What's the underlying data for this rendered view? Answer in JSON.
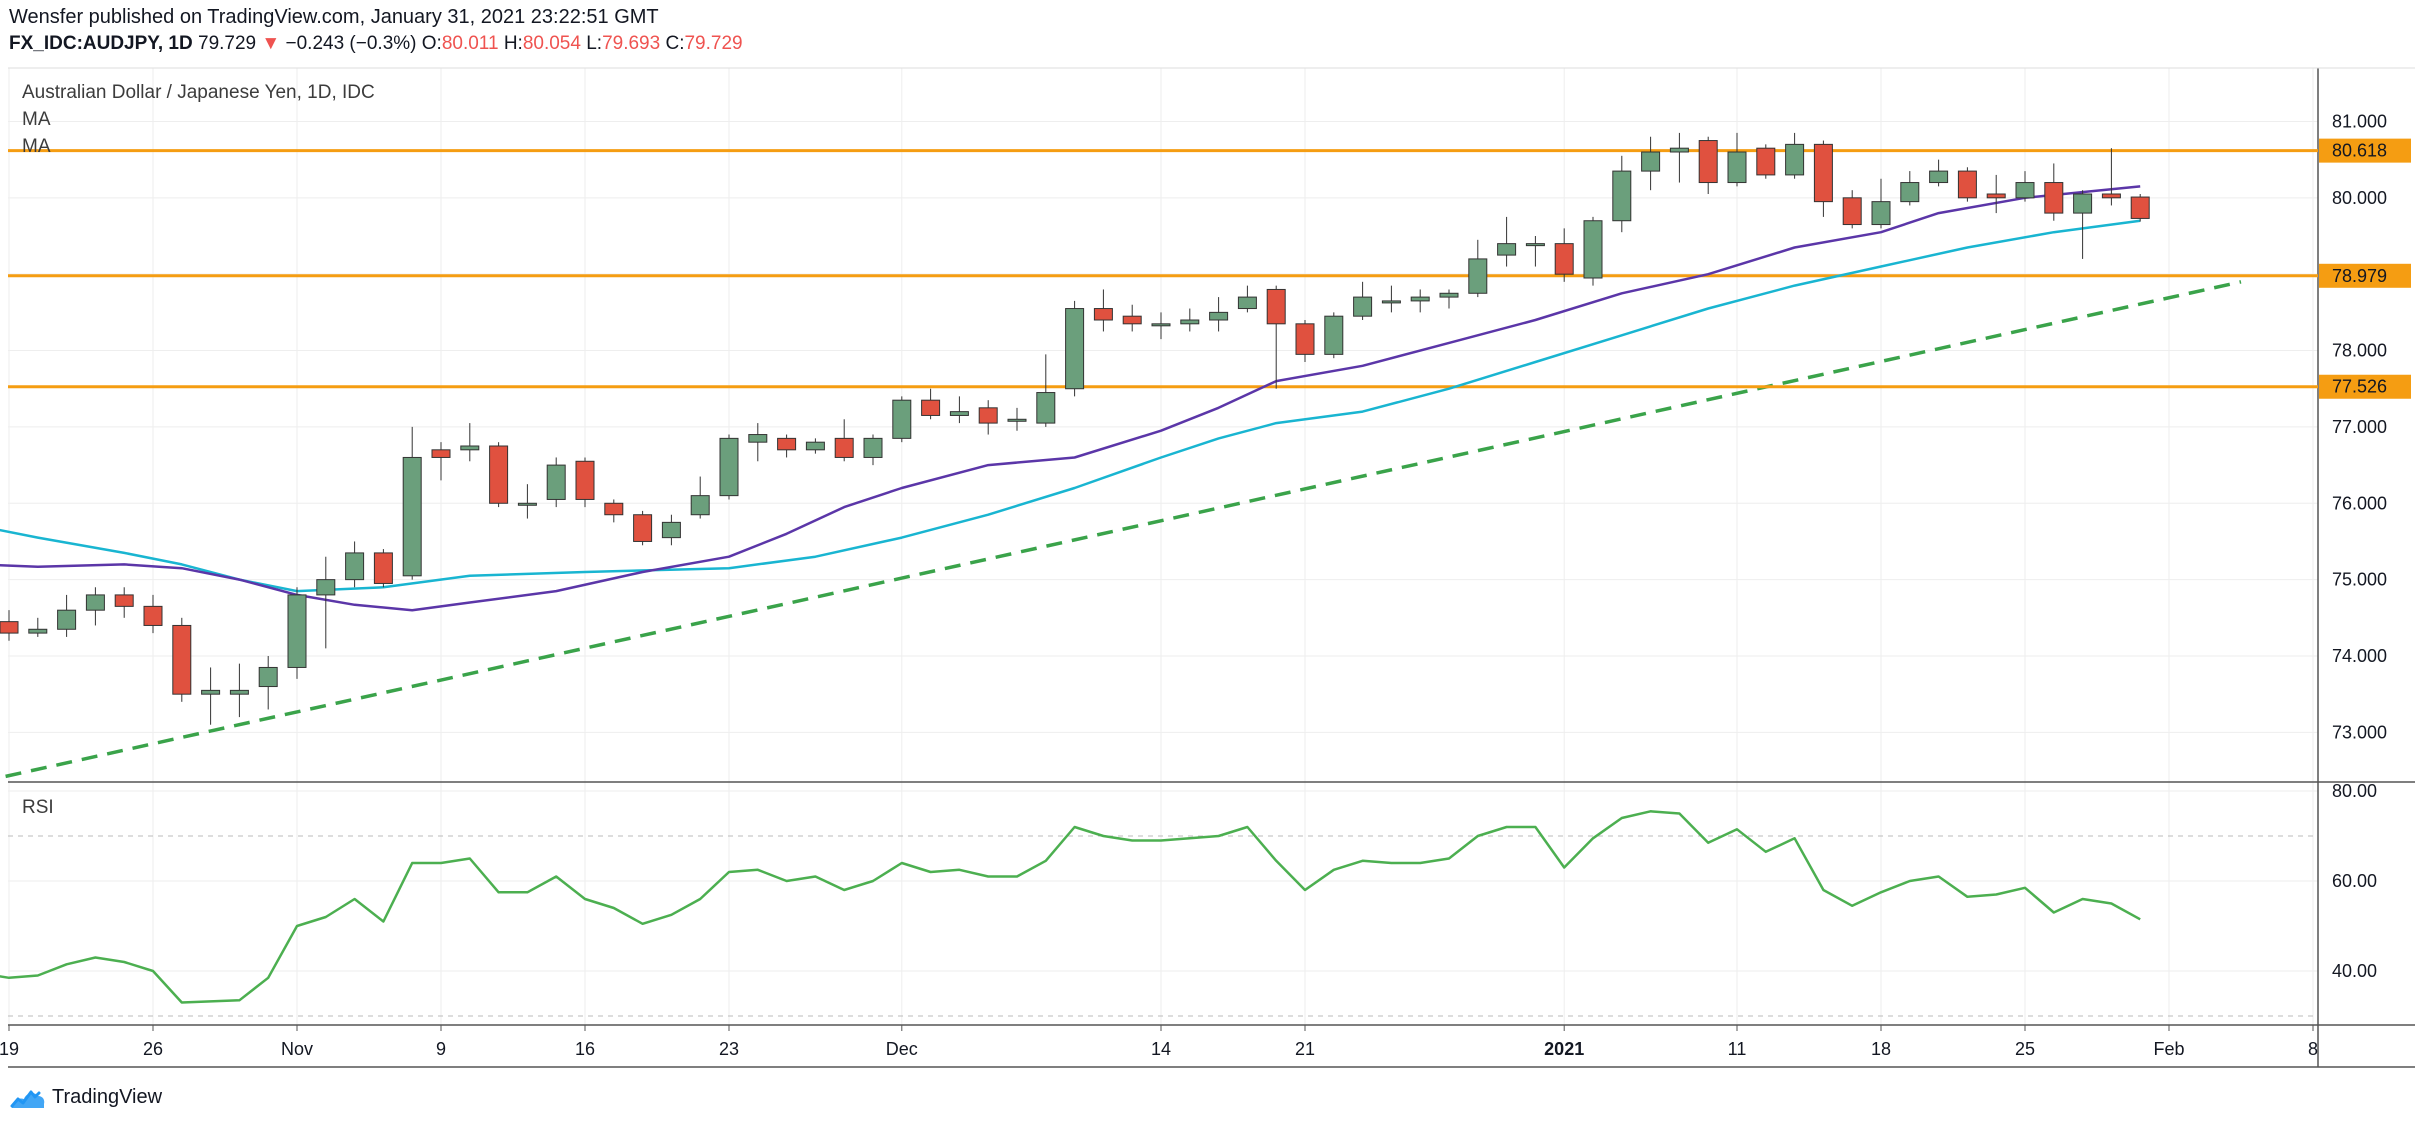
{
  "header": {
    "publisher_line": "Wensfer published on TradingView.com, January 31, 2021 23:22:51 GMT",
    "symbol": "FX_IDC:AUDJPY, 1D",
    "last": "79.729",
    "change_arrow": "▼",
    "change": "−0.243 (−0.3%)",
    "open_label": "O:",
    "open": "80.011",
    "high_label": "H:",
    "high": "80.054",
    "low_label": "L:",
    "low": "79.693",
    "close_label": "C:",
    "close": "79.729"
  },
  "legend": {
    "title": "Australian Dollar / Japanese Yen, 1D, IDC",
    "ma1": "MA",
    "ma2": "MA",
    "rsi": "RSI"
  },
  "brand": {
    "name": "TradingView"
  },
  "colors": {
    "up": "#6b9f7c",
    "down": "#e0513f",
    "ma_fast": "#5b36a8",
    "ma_slow": "#19b5d1",
    "trend": "#3aa34a",
    "hline": "#f59d12",
    "rsi": "#4caf50",
    "grid": "#eeeeee"
  },
  "chart_data": [
    {
      "type": "candlestick",
      "title": "Australian Dollar / Japanese Yen, 1D, IDC",
      "ylim": [
        72.35,
        81.7
      ],
      "yticks": [
        "73.000",
        "74.000",
        "75.000",
        "76.000",
        "77.000",
        "78.000",
        "80.000",
        "81.000"
      ],
      "x_tick_labels": [
        {
          "label": "19",
          "day": -10
        },
        {
          "label": "26",
          "day": -5
        },
        {
          "label": "Nov",
          "day": 0
        },
        {
          "label": "9",
          "day": 5
        },
        {
          "label": "16",
          "day": 10
        },
        {
          "label": "23",
          "day": 15
        },
        {
          "label": "Dec",
          "day": 21
        },
        {
          "label": "14",
          "day": 30
        },
        {
          "label": "21",
          "day": 35
        },
        {
          "label": "2021",
          "day": 44
        },
        {
          "label": "11",
          "day": 50
        },
        {
          "label": "18",
          "day": 55
        },
        {
          "label": "25",
          "day": 60
        },
        {
          "label": "Feb",
          "day": 65
        },
        {
          "label": "8",
          "day": 70
        }
      ],
      "candles": [
        {
          "day": -11,
          "o": 74.6,
          "h": 75.0,
          "l": 74.3,
          "c": 74.45
        },
        {
          "day": -10,
          "o": 74.45,
          "h": 74.6,
          "l": 74.2,
          "c": 74.3
        },
        {
          "day": -9,
          "o": 74.3,
          "h": 74.5,
          "l": 74.25,
          "c": 74.35
        },
        {
          "day": -8,
          "o": 74.35,
          "h": 74.8,
          "l": 74.25,
          "c": 74.6
        },
        {
          "day": -7,
          "o": 74.6,
          "h": 74.9,
          "l": 74.4,
          "c": 74.8
        },
        {
          "day": -6,
          "o": 74.8,
          "h": 74.9,
          "l": 74.5,
          "c": 74.65
        },
        {
          "day": -5,
          "o": 74.65,
          "h": 74.8,
          "l": 74.3,
          "c": 74.4
        },
        {
          "day": -4,
          "o": 74.4,
          "h": 74.5,
          "l": 73.4,
          "c": 73.5
        },
        {
          "day": -3,
          "o": 73.5,
          "h": 73.85,
          "l": 73.1,
          "c": 73.55
        },
        {
          "day": -2,
          "o": 73.5,
          "h": 73.9,
          "l": 73.2,
          "c": 73.55
        },
        {
          "day": -1,
          "o": 73.6,
          "h": 74.0,
          "l": 73.3,
          "c": 73.85
        },
        {
          "day": 0,
          "o": 73.85,
          "h": 74.9,
          "l": 73.7,
          "c": 74.8
        },
        {
          "day": 1,
          "o": 74.8,
          "h": 75.3,
          "l": 74.1,
          "c": 75.0
        },
        {
          "day": 2,
          "o": 75.0,
          "h": 75.5,
          "l": 74.9,
          "c": 75.35
        },
        {
          "day": 3,
          "o": 75.35,
          "h": 75.4,
          "l": 74.9,
          "c": 74.95
        },
        {
          "day": 4,
          "o": 75.05,
          "h": 77.0,
          "l": 75.0,
          "c": 76.6
        },
        {
          "day": 5,
          "o": 76.7,
          "h": 76.8,
          "l": 76.3,
          "c": 76.6
        },
        {
          "day": 6,
          "o": 76.7,
          "h": 77.05,
          "l": 76.55,
          "c": 76.75
        },
        {
          "day": 7,
          "o": 76.75,
          "h": 76.8,
          "l": 75.95,
          "c": 76.0
        },
        {
          "day": 8,
          "o": 76.0,
          "h": 76.25,
          "l": 75.8,
          "c": 76.0
        },
        {
          "day": 9,
          "o": 76.05,
          "h": 76.6,
          "l": 75.95,
          "c": 76.5
        },
        {
          "day": 10,
          "o": 76.55,
          "h": 76.6,
          "l": 75.95,
          "c": 76.05
        },
        {
          "day": 11,
          "o": 76.0,
          "h": 76.05,
          "l": 75.75,
          "c": 75.85
        },
        {
          "day": 12,
          "o": 75.85,
          "h": 75.9,
          "l": 75.45,
          "c": 75.5
        },
        {
          "day": 13,
          "o": 75.55,
          "h": 75.85,
          "l": 75.45,
          "c": 75.75
        },
        {
          "day": 14,
          "o": 75.85,
          "h": 76.35,
          "l": 75.8,
          "c": 76.1
        },
        {
          "day": 15,
          "o": 76.1,
          "h": 76.9,
          "l": 76.05,
          "c": 76.85
        },
        {
          "day": 16,
          "o": 76.8,
          "h": 77.05,
          "l": 76.55,
          "c": 76.9
        },
        {
          "day": 17,
          "o": 76.85,
          "h": 76.9,
          "l": 76.6,
          "c": 76.7
        },
        {
          "day": 18,
          "o": 76.7,
          "h": 76.85,
          "l": 76.65,
          "c": 76.8
        },
        {
          "day": 19,
          "o": 76.85,
          "h": 77.1,
          "l": 76.55,
          "c": 76.6
        },
        {
          "day": 20,
          "o": 76.6,
          "h": 76.9,
          "l": 76.5,
          "c": 76.85
        },
        {
          "day": 21,
          "o": 76.85,
          "h": 77.4,
          "l": 76.8,
          "c": 77.35
        },
        {
          "day": 22,
          "o": 77.35,
          "h": 77.5,
          "l": 77.1,
          "c": 77.15
        },
        {
          "day": 23,
          "o": 77.15,
          "h": 77.4,
          "l": 77.05,
          "c": 77.2
        },
        {
          "day": 24,
          "o": 77.25,
          "h": 77.35,
          "l": 76.9,
          "c": 77.05
        },
        {
          "day": 25,
          "o": 77.1,
          "h": 77.25,
          "l": 76.95,
          "c": 77.1
        },
        {
          "day": 26,
          "o": 77.05,
          "h": 77.95,
          "l": 77.0,
          "c": 77.45
        },
        {
          "day": 27,
          "o": 77.5,
          "h": 78.65,
          "l": 77.4,
          "c": 78.55
        },
        {
          "day": 28,
          "o": 78.55,
          "h": 78.8,
          "l": 78.25,
          "c": 78.4
        },
        {
          "day": 29,
          "o": 78.45,
          "h": 78.6,
          "l": 78.25,
          "c": 78.35
        },
        {
          "day": 30,
          "o": 78.35,
          "h": 78.5,
          "l": 78.15,
          "c": 78.35
        },
        {
          "day": 31,
          "o": 78.35,
          "h": 78.55,
          "l": 78.25,
          "c": 78.4
        },
        {
          "day": 32,
          "o": 78.4,
          "h": 78.7,
          "l": 78.25,
          "c": 78.5
        },
        {
          "day": 33,
          "o": 78.55,
          "h": 78.85,
          "l": 78.5,
          "c": 78.7
        },
        {
          "day": 34,
          "o": 78.8,
          "h": 78.85,
          "l": 77.5,
          "c": 78.35
        },
        {
          "day": 35,
          "o": 78.35,
          "h": 78.4,
          "l": 77.85,
          "c": 77.95
        },
        {
          "day": 36,
          "o": 77.95,
          "h": 78.5,
          "l": 77.9,
          "c": 78.45
        },
        {
          "day": 37,
          "o": 78.45,
          "h": 78.9,
          "l": 78.4,
          "c": 78.7
        },
        {
          "day": 38,
          "o": 78.65,
          "h": 78.85,
          "l": 78.5,
          "c": 78.65
        },
        {
          "day": 39,
          "o": 78.65,
          "h": 78.8,
          "l": 78.5,
          "c": 78.7
        },
        {
          "day": 40,
          "o": 78.7,
          "h": 78.8,
          "l": 78.55,
          "c": 78.75
        },
        {
          "day": 41,
          "o": 78.75,
          "h": 79.45,
          "l": 78.7,
          "c": 79.2
        },
        {
          "day": 42,
          "o": 79.25,
          "h": 79.75,
          "l": 79.1,
          "c": 79.4
        },
        {
          "day": 43,
          "o": 79.4,
          "h": 79.5,
          "l": 79.1,
          "c": 79.4
        },
        {
          "day": 44,
          "o": 79.4,
          "h": 79.6,
          "l": 78.9,
          "c": 79.0
        },
        {
          "day": 45,
          "o": 78.95,
          "h": 79.75,
          "l": 78.85,
          "c": 79.7
        },
        {
          "day": 46,
          "o": 79.7,
          "h": 80.55,
          "l": 79.55,
          "c": 80.35
        },
        {
          "day": 47,
          "o": 80.35,
          "h": 80.8,
          "l": 80.1,
          "c": 80.6
        },
        {
          "day": 48,
          "o": 80.6,
          "h": 80.85,
          "l": 80.2,
          "c": 80.65
        },
        {
          "day": 49,
          "o": 80.75,
          "h": 80.8,
          "l": 80.05,
          "c": 80.2
        },
        {
          "day": 50,
          "o": 80.2,
          "h": 80.85,
          "l": 80.15,
          "c": 80.6
        },
        {
          "day": 51,
          "o": 80.65,
          "h": 80.7,
          "l": 80.25,
          "c": 80.3
        },
        {
          "day": 52,
          "o": 80.3,
          "h": 80.85,
          "l": 80.25,
          "c": 80.7
        },
        {
          "day": 53,
          "o": 80.7,
          "h": 80.75,
          "l": 79.75,
          "c": 79.95
        },
        {
          "day": 54,
          "o": 80.0,
          "h": 80.1,
          "l": 79.6,
          "c": 79.65
        },
        {
          "day": 55,
          "o": 79.65,
          "h": 80.25,
          "l": 79.6,
          "c": 79.95
        },
        {
          "day": 56,
          "o": 79.95,
          "h": 80.35,
          "l": 79.9,
          "c": 80.2
        },
        {
          "day": 57,
          "o": 80.2,
          "h": 80.5,
          "l": 80.15,
          "c": 80.35
        },
        {
          "day": 58,
          "o": 80.35,
          "h": 80.4,
          "l": 79.95,
          "c": 80.0
        },
        {
          "day": 59,
          "o": 80.05,
          "h": 80.3,
          "l": 79.8,
          "c": 80.0
        },
        {
          "day": 60,
          "o": 80.0,
          "h": 80.35,
          "l": 79.95,
          "c": 80.2
        },
        {
          "day": 61,
          "o": 80.2,
          "h": 80.45,
          "l": 79.7,
          "c": 79.8
        },
        {
          "day": 62,
          "o": 79.8,
          "h": 80.1,
          "l": 79.2,
          "c": 80.05
        },
        {
          "day": 63,
          "o": 80.05,
          "h": 80.65,
          "l": 79.9,
          "c": 80.0
        },
        {
          "day": 64,
          "o": 80.01,
          "h": 80.05,
          "l": 79.69,
          "c": 79.73
        }
      ],
      "ma_fast": {
        "name": "MA",
        "points": [
          [
            -11,
            75.2
          ],
          [
            -9,
            75.17
          ],
          [
            -6,
            75.2
          ],
          [
            -4,
            75.15
          ],
          [
            -2,
            75.0
          ],
          [
            0,
            74.8
          ],
          [
            2,
            74.67
          ],
          [
            4,
            74.6
          ],
          [
            6,
            74.7
          ],
          [
            9,
            74.85
          ],
          [
            12,
            75.1
          ],
          [
            15,
            75.3
          ],
          [
            17,
            75.6
          ],
          [
            19,
            75.95
          ],
          [
            21,
            76.2
          ],
          [
            24,
            76.5
          ],
          [
            27,
            76.6
          ],
          [
            30,
            76.95
          ],
          [
            32,
            77.25
          ],
          [
            34,
            77.6
          ],
          [
            37,
            77.8
          ],
          [
            40,
            78.1
          ],
          [
            43,
            78.4
          ],
          [
            46,
            78.75
          ],
          [
            49,
            79.0
          ],
          [
            52,
            79.35
          ],
          [
            55,
            79.55
          ],
          [
            57,
            79.8
          ],
          [
            60,
            80.0
          ],
          [
            64,
            80.15
          ]
        ]
      },
      "ma_slow": {
        "name": "MA",
        "points": [
          [
            -11,
            75.7
          ],
          [
            -9,
            75.55
          ],
          [
            -6,
            75.35
          ],
          [
            -4,
            75.2
          ],
          [
            -2,
            75.0
          ],
          [
            0,
            74.85
          ],
          [
            3,
            74.9
          ],
          [
            6,
            75.05
          ],
          [
            10,
            75.1
          ],
          [
            15,
            75.15
          ],
          [
            18,
            75.3
          ],
          [
            21,
            75.55
          ],
          [
            24,
            75.85
          ],
          [
            27,
            76.2
          ],
          [
            30,
            76.6
          ],
          [
            32,
            76.85
          ],
          [
            34,
            77.05
          ],
          [
            37,
            77.2
          ],
          [
            40,
            77.5
          ],
          [
            43,
            77.85
          ],
          [
            46,
            78.2
          ],
          [
            49,
            78.55
          ],
          [
            52,
            78.85
          ],
          [
            55,
            79.1
          ],
          [
            58,
            79.35
          ],
          [
            61,
            79.55
          ],
          [
            64,
            79.7
          ]
        ]
      },
      "trendline": {
        "from": [
          -11,
          72.35
        ],
        "to": [
          67.5,
          78.9
        ]
      },
      "horizontal_levels": [
        80.618,
        78.979,
        77.526
      ],
      "level_labels": [
        "80.618",
        "78.979",
        "77.526"
      ]
    },
    {
      "type": "line",
      "title": "RSI",
      "ylim": [
        28,
        82
      ],
      "yticks": [
        "40.00",
        "60.00",
        "80.00"
      ],
      "guides": [
        70,
        30
      ],
      "values": [
        [
          -11,
          39.5
        ],
        [
          -10,
          38.5
        ],
        [
          -9,
          39.0
        ],
        [
          -8,
          41.5
        ],
        [
          -7,
          43.0
        ],
        [
          -6,
          42.0
        ],
        [
          -5,
          40.0
        ],
        [
          -4,
          33.0
        ],
        [
          -2,
          33.5
        ],
        [
          -1,
          38.5
        ],
        [
          0,
          50.0
        ],
        [
          1,
          52.0
        ],
        [
          2,
          56.0
        ],
        [
          3,
          51.0
        ],
        [
          4,
          64.0
        ],
        [
          5,
          64.0
        ],
        [
          6,
          65.0
        ],
        [
          7,
          57.5
        ],
        [
          8,
          57.5
        ],
        [
          9,
          61.0
        ],
        [
          10,
          56.0
        ],
        [
          11,
          54.0
        ],
        [
          12,
          50.5
        ],
        [
          13,
          52.5
        ],
        [
          14,
          56.0
        ],
        [
          15,
          62.0
        ],
        [
          16,
          62.5
        ],
        [
          17,
          60.0
        ],
        [
          18,
          61.0
        ],
        [
          19,
          58.0
        ],
        [
          20,
          60.0
        ],
        [
          21,
          64.0
        ],
        [
          22,
          62.0
        ],
        [
          23,
          62.5
        ],
        [
          24,
          61.0
        ],
        [
          25,
          61.0
        ],
        [
          26,
          64.5
        ],
        [
          27,
          72.0
        ],
        [
          28,
          70.0
        ],
        [
          29,
          69.0
        ],
        [
          30,
          69.0
        ],
        [
          31,
          69.5
        ],
        [
          32,
          70.0
        ],
        [
          33,
          72.0
        ],
        [
          34,
          64.5
        ],
        [
          35,
          58.0
        ],
        [
          36,
          62.5
        ],
        [
          37,
          64.5
        ],
        [
          38,
          64.0
        ],
        [
          39,
          64.0
        ],
        [
          40,
          65.0
        ],
        [
          41,
          70.0
        ],
        [
          42,
          72.0
        ],
        [
          43,
          72.0
        ],
        [
          44,
          63.0
        ],
        [
          45,
          69.5
        ],
        [
          46,
          74.0
        ],
        [
          47,
          75.5
        ],
        [
          48,
          75.0
        ],
        [
          49,
          68.5
        ],
        [
          50,
          71.5
        ],
        [
          51,
          66.5
        ],
        [
          52,
          69.5
        ],
        [
          53,
          58.0
        ],
        [
          54,
          54.5
        ],
        [
          55,
          57.5
        ],
        [
          56,
          60.0
        ],
        [
          57,
          61.0
        ],
        [
          58,
          56.5
        ],
        [
          59,
          57.0
        ],
        [
          60,
          58.5
        ],
        [
          61,
          53.0
        ],
        [
          62,
          56.0
        ],
        [
          63,
          55.0
        ],
        [
          64,
          51.5
        ]
      ]
    }
  ]
}
